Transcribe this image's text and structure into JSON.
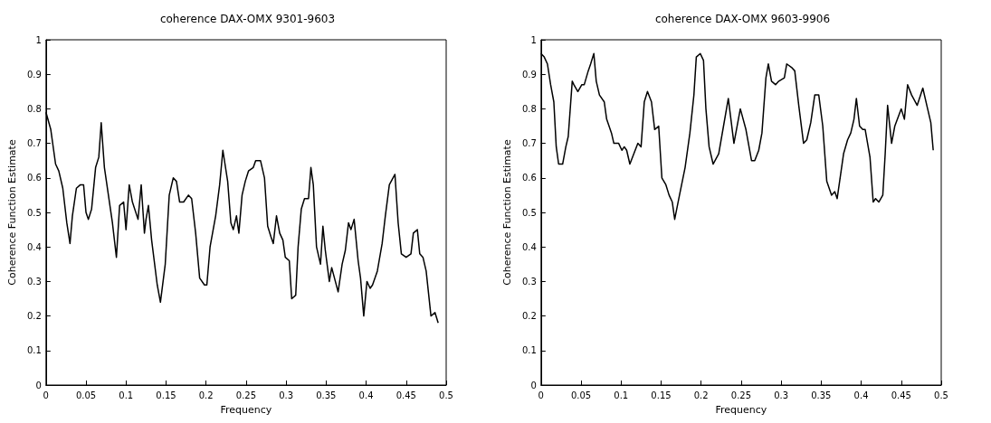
{
  "chart_data": [
    {
      "type": "line",
      "title": "coherence DAX-OMX 9301-9603",
      "xlabel": "Frequency",
      "ylabel": "Coherence Function Estimate",
      "xlim": [
        0,
        0.5
      ],
      "xticks": [
        0,
        0.05,
        0.1,
        0.15,
        0.2,
        0.25,
        0.3,
        0.35,
        0.4,
        0.45,
        0.5
      ],
      "ylim": [
        0,
        1
      ],
      "yticks": [
        0,
        0.1,
        0.2,
        0.3,
        0.4,
        0.5,
        0.6,
        0.7,
        0.8,
        0.9,
        1
      ],
      "series": [
        {
          "color": "#000000",
          "x": [
            0,
            0.006,
            0.012,
            0.016,
            0.021,
            0.026,
            0.03,
            0.033,
            0.038,
            0.043,
            0.047,
            0.05,
            0.053,
            0.057,
            0.062,
            0.066,
            0.069,
            0.073,
            0.078,
            0.083,
            0.088,
            0.092,
            0.097,
            0.1,
            0.104,
            0.108,
            0.115,
            0.119,
            0.123,
            0.125,
            0.128,
            0.132,
            0.139,
            0.143,
            0.149,
            0.154,
            0.159,
            0.163,
            0.167,
            0.172,
            0.178,
            0.182,
            0.187,
            0.192,
            0.198,
            0.201,
            0.205,
            0.212,
            0.217,
            0.221,
            0.227,
            0.231,
            0.234,
            0.238,
            0.241,
            0.245,
            0.249,
            0.253,
            0.259,
            0.262,
            0.268,
            0.273,
            0.277,
            0.281,
            0.284,
            0.288,
            0.292,
            0.296,
            0.299,
            0.304,
            0.307,
            0.312,
            0.315,
            0.319,
            0.323,
            0.328,
            0.331,
            0.334,
            0.338,
            0.343,
            0.346,
            0.349,
            0.354,
            0.357,
            0.365,
            0.37,
            0.374,
            0.378,
            0.381,
            0.385,
            0.39,
            0.393,
            0.397,
            0.401,
            0.405,
            0.408,
            0.414,
            0.42,
            0.424,
            0.429,
            0.436,
            0.44,
            0.444,
            0.45,
            0.456,
            0.459,
            0.464,
            0.467,
            0.471,
            0.475,
            0.481,
            0.486,
            0.49
          ],
          "values": [
            0.79,
            0.74,
            0.64,
            0.62,
            0.57,
            0.47,
            0.41,
            0.49,
            0.57,
            0.58,
            0.58,
            0.5,
            0.48,
            0.51,
            0.63,
            0.66,
            0.76,
            0.63,
            0.55,
            0.47,
            0.37,
            0.52,
            0.53,
            0.45,
            0.58,
            0.53,
            0.48,
            0.58,
            0.44,
            0.48,
            0.52,
            0.42,
            0.29,
            0.24,
            0.35,
            0.55,
            0.6,
            0.59,
            0.53,
            0.53,
            0.55,
            0.54,
            0.44,
            0.31,
            0.29,
            0.29,
            0.4,
            0.49,
            0.58,
            0.68,
            0.59,
            0.47,
            0.45,
            0.49,
            0.44,
            0.55,
            0.59,
            0.62,
            0.63,
            0.65,
            0.65,
            0.6,
            0.46,
            0.43,
            0.41,
            0.49,
            0.44,
            0.42,
            0.37,
            0.36,
            0.25,
            0.26,
            0.4,
            0.51,
            0.54,
            0.54,
            0.63,
            0.58,
            0.4,
            0.35,
            0.46,
            0.39,
            0.3,
            0.34,
            0.27,
            0.35,
            0.39,
            0.47,
            0.45,
            0.48,
            0.36,
            0.31,
            0.2,
            0.3,
            0.28,
            0.29,
            0.33,
            0.41,
            0.49,
            0.58,
            0.61,
            0.47,
            0.38,
            0.37,
            0.38,
            0.44,
            0.45,
            0.38,
            0.37,
            0.33,
            0.2,
            0.21,
            0.18
          ]
        }
      ]
    },
    {
      "type": "line",
      "title": "coherence DAX-OMX 9603-9906",
      "xlabel": "Frequency",
      "ylabel": "Coherence Function Estimate",
      "xlim": [
        0,
        0.5
      ],
      "xticks": [
        0,
        0.05,
        0.1,
        0.15,
        0.2,
        0.25,
        0.3,
        0.35,
        0.4,
        0.45,
        0.5
      ],
      "ylim": [
        0,
        1
      ],
      "yticks": [
        0,
        0.1,
        0.2,
        0.3,
        0.4,
        0.5,
        0.6,
        0.7,
        0.8,
        0.9,
        1
      ],
      "series": [
        {
          "color": "#000000",
          "x": [
            0,
            0.004,
            0.008,
            0.012,
            0.016,
            0.019,
            0.022,
            0.027,
            0.031,
            0.034,
            0.039,
            0.041,
            0.046,
            0.051,
            0.054,
            0.059,
            0.062,
            0.066,
            0.069,
            0.073,
            0.079,
            0.082,
            0.088,
            0.091,
            0.097,
            0.101,
            0.104,
            0.107,
            0.111,
            0.116,
            0.121,
            0.125,
            0.129,
            0.133,
            0.138,
            0.142,
            0.147,
            0.151,
            0.156,
            0.16,
            0.164,
            0.167,
            0.173,
            0.18,
            0.186,
            0.191,
            0.194,
            0.199,
            0.203,
            0.206,
            0.21,
            0.215,
            0.222,
            0.228,
            0.234,
            0.241,
            0.249,
            0.256,
            0.263,
            0.267,
            0.272,
            0.276,
            0.281,
            0.284,
            0.288,
            0.293,
            0.297,
            0.304,
            0.307,
            0.313,
            0.317,
            0.322,
            0.328,
            0.332,
            0.337,
            0.342,
            0.347,
            0.352,
            0.357,
            0.363,
            0.367,
            0.37,
            0.378,
            0.383,
            0.387,
            0.391,
            0.394,
            0.398,
            0.402,
            0.405,
            0.411,
            0.415,
            0.418,
            0.422,
            0.427,
            0.43,
            0.433,
            0.438,
            0.442,
            0.45,
            0.454,
            0.458,
            0.463,
            0.47,
            0.477,
            0.483,
            0.487,
            0.49
          ],
          "values": [
            0.96,
            0.95,
            0.93,
            0.87,
            0.82,
            0.69,
            0.64,
            0.64,
            0.69,
            0.72,
            0.88,
            0.87,
            0.85,
            0.87,
            0.87,
            0.91,
            0.93,
            0.96,
            0.88,
            0.84,
            0.82,
            0.77,
            0.73,
            0.7,
            0.7,
            0.68,
            0.69,
            0.68,
            0.64,
            0.67,
            0.7,
            0.69,
            0.82,
            0.85,
            0.82,
            0.74,
            0.75,
            0.6,
            0.58,
            0.55,
            0.53,
            0.48,
            0.55,
            0.63,
            0.73,
            0.84,
            0.95,
            0.96,
            0.94,
            0.8,
            0.69,
            0.64,
            0.67,
            0.75,
            0.83,
            0.7,
            0.8,
            0.74,
            0.65,
            0.65,
            0.68,
            0.73,
            0.89,
            0.93,
            0.88,
            0.87,
            0.88,
            0.89,
            0.93,
            0.92,
            0.91,
            0.81,
            0.7,
            0.71,
            0.76,
            0.84,
            0.84,
            0.75,
            0.59,
            0.55,
            0.56,
            0.54,
            0.67,
            0.71,
            0.73,
            0.77,
            0.83,
            0.75,
            0.74,
            0.74,
            0.66,
            0.53,
            0.54,
            0.53,
            0.55,
            0.67,
            0.81,
            0.7,
            0.75,
            0.8,
            0.77,
            0.87,
            0.84,
            0.81,
            0.86,
            0.8,
            0.76,
            0.68
          ]
        }
      ]
    }
  ]
}
